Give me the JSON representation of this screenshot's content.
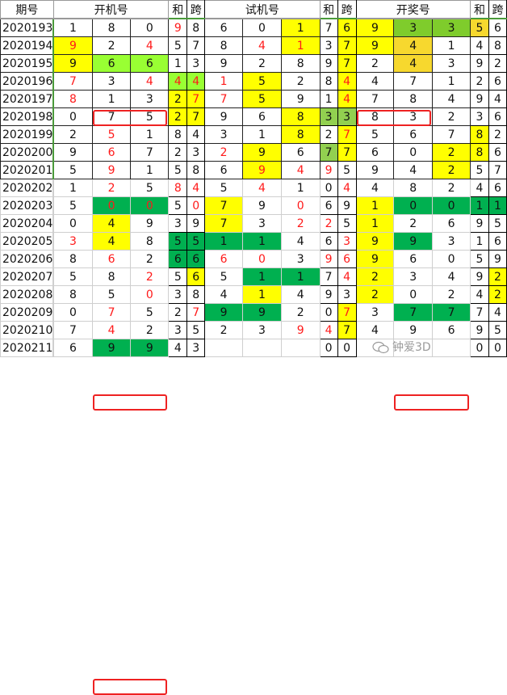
{
  "headers": {
    "period": "期号",
    "kaiji": "开机号",
    "sum": "和",
    "span": "跨",
    "shiji": "试机号",
    "kaijiang": "开奖号"
  },
  "colors": {
    "y": "#ffff00",
    "g": "#00b050",
    "l": "#99ff33",
    "m": "#92d050",
    "o": "#f7d82e",
    "G": "#7fcc2c",
    "red": "#ff1a1a",
    "box": "#ee2222"
  },
  "watermark": "钟爱3D",
  "rows": [
    {
      "period": "2020193",
      "cells": [
        [
          "1",
          "",
          ""
        ],
        [
          "8",
          "",
          ""
        ],
        [
          "0",
          "",
          ""
        ],
        [
          "9",
          "r",
          ""
        ],
        [
          "8",
          "",
          ""
        ],
        [
          "6",
          "",
          ""
        ],
        [
          "0",
          "",
          ""
        ],
        [
          "1",
          "",
          "y"
        ],
        [
          "7",
          "",
          ""
        ],
        [
          "6",
          "",
          "y"
        ],
        [
          "9",
          "",
          "y"
        ],
        [
          "3",
          "",
          "G"
        ],
        [
          "3",
          "",
          "G"
        ],
        [
          "5",
          "",
          "o"
        ],
        [
          "6",
          "",
          ""
        ]
      ]
    },
    {
      "period": "2020194",
      "cells": [
        [
          "9",
          "r",
          "y"
        ],
        [
          "2",
          "",
          ""
        ],
        [
          "4",
          "r",
          ""
        ],
        [
          "5",
          "",
          ""
        ],
        [
          "7",
          "",
          ""
        ],
        [
          "8",
          "",
          ""
        ],
        [
          "4",
          "r",
          ""
        ],
        [
          "1",
          "r",
          "y"
        ],
        [
          "3",
          "",
          ""
        ],
        [
          "7",
          "",
          "y"
        ],
        [
          "9",
          "",
          "y"
        ],
        [
          "4",
          "",
          "o"
        ],
        [
          "1",
          "",
          ""
        ],
        [
          "4",
          "",
          ""
        ],
        [
          "8",
          "",
          ""
        ]
      ]
    },
    {
      "period": "2020195",
      "cells": [
        [
          "9",
          "",
          "y"
        ],
        [
          "6",
          "",
          "l"
        ],
        [
          "6",
          "",
          "l"
        ],
        [
          "1",
          "",
          ""
        ],
        [
          "3",
          "",
          ""
        ],
        [
          "9",
          "",
          ""
        ],
        [
          "2",
          "",
          ""
        ],
        [
          "8",
          "",
          ""
        ],
        [
          "9",
          "",
          ""
        ],
        [
          "7",
          "",
          "y"
        ],
        [
          "2",
          "",
          ""
        ],
        [
          "4",
          "",
          "o"
        ],
        [
          "3",
          "",
          ""
        ],
        [
          "9",
          "",
          ""
        ],
        [
          "2",
          "",
          ""
        ]
      ],
      "boxes": [
        [
          1,
          2
        ],
        [
          10,
          11
        ]
      ]
    },
    {
      "period": "2020196",
      "cells": [
        [
          "7",
          "r",
          ""
        ],
        [
          "3",
          "",
          ""
        ],
        [
          "4",
          "r",
          ""
        ],
        [
          "4",
          "r",
          "l"
        ],
        [
          "4",
          "r",
          "l"
        ],
        [
          "1",
          "r",
          ""
        ],
        [
          "5",
          "",
          "y"
        ],
        [
          "2",
          "",
          ""
        ],
        [
          "8",
          "",
          ""
        ],
        [
          "4",
          "r",
          "y"
        ],
        [
          "4",
          "",
          ""
        ],
        [
          "7",
          "",
          ""
        ],
        [
          "1",
          "",
          ""
        ],
        [
          "2",
          "",
          ""
        ],
        [
          "6",
          "",
          ""
        ]
      ]
    },
    {
      "period": "2020197",
      "cells": [
        [
          "8",
          "r",
          ""
        ],
        [
          "1",
          "",
          ""
        ],
        [
          "3",
          "",
          ""
        ],
        [
          "2",
          "",
          "y"
        ],
        [
          "7",
          "r",
          "y"
        ],
        [
          "7",
          "r",
          ""
        ],
        [
          "5",
          "",
          "y"
        ],
        [
          "9",
          "",
          ""
        ],
        [
          "1",
          "",
          ""
        ],
        [
          "4",
          "r",
          "y"
        ],
        [
          "7",
          "",
          ""
        ],
        [
          "8",
          "",
          ""
        ],
        [
          "4",
          "",
          ""
        ],
        [
          "9",
          "",
          ""
        ],
        [
          "4",
          "",
          ""
        ]
      ]
    },
    {
      "period": "2020198",
      "cells": [
        [
          "0",
          "",
          ""
        ],
        [
          "7",
          "",
          ""
        ],
        [
          "5",
          "",
          ""
        ],
        [
          "2",
          "",
          "y"
        ],
        [
          "7",
          "",
          "y"
        ],
        [
          "9",
          "",
          ""
        ],
        [
          "6",
          "",
          ""
        ],
        [
          "8",
          "",
          "y"
        ],
        [
          "3",
          "",
          "m"
        ],
        [
          "3",
          "",
          "m"
        ],
        [
          "8",
          "",
          ""
        ],
        [
          "3",
          "",
          ""
        ],
        [
          "2",
          "",
          ""
        ],
        [
          "3",
          "",
          ""
        ],
        [
          "6",
          "",
          ""
        ]
      ]
    },
    {
      "period": "2020199",
      "cells": [
        [
          "2",
          "",
          ""
        ],
        [
          "5",
          "r",
          ""
        ],
        [
          "1",
          "",
          ""
        ],
        [
          "8",
          "",
          ""
        ],
        [
          "4",
          "",
          ""
        ],
        [
          "3",
          "",
          ""
        ],
        [
          "1",
          "",
          ""
        ],
        [
          "8",
          "",
          "y"
        ],
        [
          "2",
          "",
          ""
        ],
        [
          "7",
          "r",
          "y"
        ],
        [
          "5",
          "",
          ""
        ],
        [
          "6",
          "",
          ""
        ],
        [
          "7",
          "",
          ""
        ],
        [
          "8",
          "",
          "y"
        ],
        [
          "2",
          "",
          ""
        ]
      ]
    },
    {
      "period": "2020200",
      "cells": [
        [
          "9",
          "",
          ""
        ],
        [
          "6",
          "r",
          ""
        ],
        [
          "7",
          "",
          ""
        ],
        [
          "2",
          "",
          ""
        ],
        [
          "3",
          "",
          ""
        ],
        [
          "2",
          "r",
          ""
        ],
        [
          "9",
          "",
          "y"
        ],
        [
          "6",
          "",
          ""
        ],
        [
          "7",
          "",
          "m"
        ],
        [
          "7",
          "",
          "y"
        ],
        [
          "6",
          "",
          ""
        ],
        [
          "0",
          "",
          ""
        ],
        [
          "2",
          "",
          "y"
        ],
        [
          "8",
          "",
          "y"
        ],
        [
          "6",
          "",
          ""
        ]
      ]
    },
    {
      "period": "2020201",
      "cells": [
        [
          "5",
          "",
          ""
        ],
        [
          "9",
          "r",
          ""
        ],
        [
          "1",
          "",
          ""
        ],
        [
          "5",
          "",
          ""
        ],
        [
          "8",
          "",
          ""
        ],
        [
          "6",
          "",
          ""
        ],
        [
          "9",
          "r",
          "y"
        ],
        [
          "4",
          "r",
          ""
        ],
        [
          "9",
          "r",
          ""
        ],
        [
          "5",
          "",
          ""
        ],
        [
          "9",
          "",
          ""
        ],
        [
          "4",
          "",
          ""
        ],
        [
          "2",
          "",
          "y"
        ],
        [
          "5",
          "",
          ""
        ],
        [
          "7",
          "",
          ""
        ]
      ]
    },
    {
      "period": "2020202",
      "cells": [
        [
          "1",
          "",
          ""
        ],
        [
          "2",
          "r",
          ""
        ],
        [
          "5",
          "",
          ""
        ],
        [
          "8",
          "r",
          ""
        ],
        [
          "4",
          "r",
          ""
        ],
        [
          "5",
          "",
          ""
        ],
        [
          "4",
          "r",
          ""
        ],
        [
          "1",
          "",
          ""
        ],
        [
          "0",
          "",
          ""
        ],
        [
          "4",
          "r",
          ""
        ],
        [
          "4",
          "",
          ""
        ],
        [
          "8",
          "",
          ""
        ],
        [
          "2",
          "",
          ""
        ],
        [
          "4",
          "",
          ""
        ],
        [
          "6",
          "",
          ""
        ]
      ]
    },
    {
      "period": "2020203",
      "cells": [
        [
          "5",
          "",
          ""
        ],
        [
          "0",
          "r",
          "g"
        ],
        [
          "0",
          "r",
          "g"
        ],
        [
          "5",
          "",
          ""
        ],
        [
          "0",
          "r",
          ""
        ],
        [
          "7",
          "",
          "y"
        ],
        [
          "9",
          "",
          ""
        ],
        [
          "0",
          "r",
          ""
        ],
        [
          "6",
          "",
          ""
        ],
        [
          "9",
          "",
          ""
        ],
        [
          "1",
          "",
          "y"
        ],
        [
          "0",
          "",
          "g"
        ],
        [
          "0",
          "",
          "g"
        ],
        [
          "1",
          "",
          "g"
        ],
        [
          "1",
          "",
          "g"
        ]
      ],
      "boxes": [
        [
          1,
          2
        ],
        [
          11,
          12
        ]
      ]
    },
    {
      "period": "2020204",
      "cells": [
        [
          "0",
          "",
          ""
        ],
        [
          "4",
          "",
          "y"
        ],
        [
          "9",
          "",
          ""
        ],
        [
          "3",
          "",
          ""
        ],
        [
          "9",
          "",
          ""
        ],
        [
          "7",
          "",
          "y"
        ],
        [
          "3",
          "",
          ""
        ],
        [
          "2",
          "r",
          ""
        ],
        [
          "2",
          "r",
          ""
        ],
        [
          "5",
          "",
          ""
        ],
        [
          "1",
          "",
          "y"
        ],
        [
          "2",
          "",
          ""
        ],
        [
          "6",
          "",
          ""
        ],
        [
          "9",
          "",
          ""
        ],
        [
          "5",
          "",
          ""
        ]
      ]
    },
    {
      "period": "2020205",
      "cells": [
        [
          "3",
          "r",
          ""
        ],
        [
          "4",
          "",
          "y"
        ],
        [
          "8",
          "",
          ""
        ],
        [
          "5",
          "",
          "g"
        ],
        [
          "5",
          "",
          "g"
        ],
        [
          "1",
          "",
          "g"
        ],
        [
          "1",
          "",
          "g"
        ],
        [
          "4",
          "",
          ""
        ],
        [
          "6",
          "",
          ""
        ],
        [
          "3",
          "r",
          ""
        ],
        [
          "9",
          "",
          "y"
        ],
        [
          "9",
          "",
          "g"
        ],
        [
          "3",
          "",
          ""
        ],
        [
          "1",
          "",
          ""
        ],
        [
          "6",
          "",
          ""
        ]
      ]
    },
    {
      "period": "2020206",
      "cells": [
        [
          "8",
          "",
          ""
        ],
        [
          "6",
          "r",
          ""
        ],
        [
          "2",
          "",
          ""
        ],
        [
          "6",
          "",
          "g"
        ],
        [
          "6",
          "",
          "g"
        ],
        [
          "6",
          "r",
          ""
        ],
        [
          "0",
          "r",
          ""
        ],
        [
          "3",
          "",
          ""
        ],
        [
          "9",
          "r",
          ""
        ],
        [
          "6",
          "r",
          ""
        ],
        [
          "9",
          "",
          "y"
        ],
        [
          "6",
          "",
          ""
        ],
        [
          "0",
          "",
          ""
        ],
        [
          "5",
          "",
          ""
        ],
        [
          "9",
          "",
          ""
        ]
      ]
    },
    {
      "period": "2020207",
      "cells": [
        [
          "5",
          "",
          ""
        ],
        [
          "8",
          "",
          ""
        ],
        [
          "2",
          "r",
          ""
        ],
        [
          "5",
          "",
          ""
        ],
        [
          "6",
          "",
          "y"
        ],
        [
          "5",
          "",
          ""
        ],
        [
          "1",
          "",
          "g"
        ],
        [
          "1",
          "",
          "g"
        ],
        [
          "7",
          "",
          ""
        ],
        [
          "4",
          "r",
          ""
        ],
        [
          "2",
          "",
          "y"
        ],
        [
          "3",
          "",
          ""
        ],
        [
          "4",
          "",
          ""
        ],
        [
          "9",
          "",
          ""
        ],
        [
          "2",
          "",
          "y"
        ]
      ]
    },
    {
      "period": "2020208",
      "cells": [
        [
          "8",
          "",
          ""
        ],
        [
          "5",
          "",
          ""
        ],
        [
          "0",
          "r",
          ""
        ],
        [
          "3",
          "",
          ""
        ],
        [
          "8",
          "",
          ""
        ],
        [
          "4",
          "",
          ""
        ],
        [
          "1",
          "",
          "y"
        ],
        [
          "4",
          "",
          ""
        ],
        [
          "9",
          "",
          ""
        ],
        [
          "3",
          "",
          ""
        ],
        [
          "2",
          "",
          "y"
        ],
        [
          "0",
          "",
          ""
        ],
        [
          "2",
          "",
          ""
        ],
        [
          "4",
          "",
          ""
        ],
        [
          "2",
          "",
          "y"
        ]
      ]
    },
    {
      "period": "2020209",
      "cells": [
        [
          "0",
          "",
          ""
        ],
        [
          "7",
          "r",
          ""
        ],
        [
          "5",
          "",
          ""
        ],
        [
          "2",
          "",
          ""
        ],
        [
          "7",
          "r",
          ""
        ],
        [
          "9",
          "",
          "g"
        ],
        [
          "9",
          "",
          "g"
        ],
        [
          "2",
          "",
          ""
        ],
        [
          "0",
          "",
          ""
        ],
        [
          "7",
          "r",
          "y"
        ],
        [
          "3",
          "",
          ""
        ],
        [
          "7",
          "",
          "g"
        ],
        [
          "7",
          "",
          "g"
        ],
        [
          "7",
          "",
          ""
        ],
        [
          "4",
          "",
          ""
        ]
      ]
    },
    {
      "period": "2020210",
      "cells": [
        [
          "7",
          "",
          ""
        ],
        [
          "4",
          "r",
          ""
        ],
        [
          "2",
          "",
          ""
        ],
        [
          "3",
          "",
          ""
        ],
        [
          "5",
          "",
          ""
        ],
        [
          "2",
          "",
          ""
        ],
        [
          "3",
          "",
          ""
        ],
        [
          "9",
          "r",
          ""
        ],
        [
          "4",
          "r",
          ""
        ],
        [
          "7",
          "",
          "y"
        ],
        [
          "4",
          "",
          ""
        ],
        [
          "9",
          "",
          ""
        ],
        [
          "6",
          "",
          ""
        ],
        [
          "9",
          "",
          ""
        ],
        [
          "5",
          "",
          ""
        ]
      ]
    },
    {
      "period": "2020211",
      "cells": [
        [
          "6",
          "",
          ""
        ],
        [
          "9",
          "",
          "g"
        ],
        [
          "9",
          "",
          "g"
        ],
        [
          "4",
          "",
          ""
        ],
        [
          "3",
          "",
          ""
        ],
        [
          "",
          "",
          ""
        ],
        [
          "",
          "",
          ""
        ],
        [
          "",
          "",
          ""
        ],
        [
          "0",
          "",
          ""
        ],
        [
          "0",
          "",
          ""
        ],
        [
          "",
          "",
          ""
        ],
        [
          "",
          "",
          ""
        ],
        [
          "",
          "",
          ""
        ],
        [
          "0",
          "",
          ""
        ],
        [
          "0",
          "",
          ""
        ]
      ],
      "boxes": [
        [
          1,
          2
        ]
      ]
    }
  ]
}
